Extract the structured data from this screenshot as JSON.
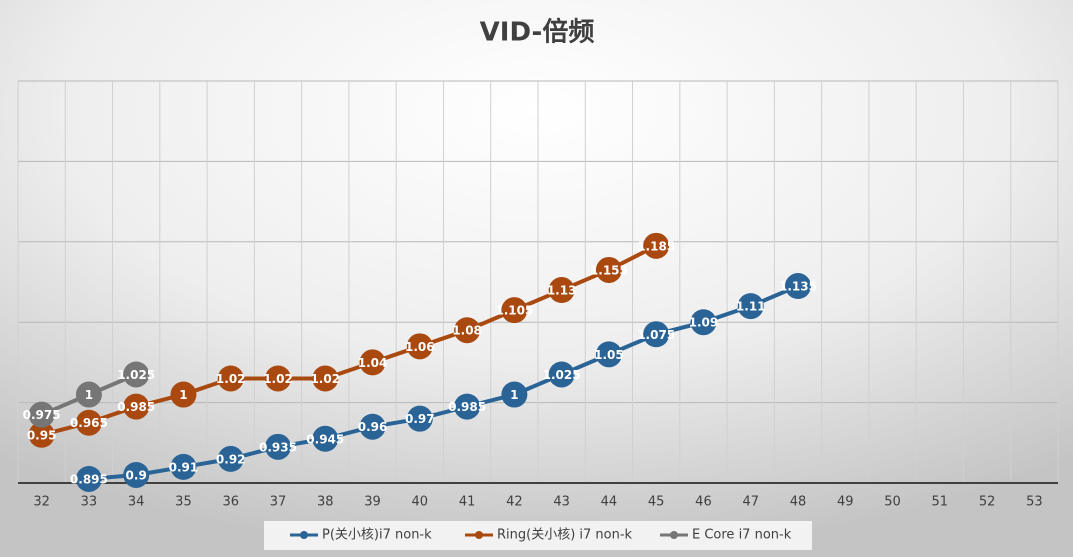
{
  "chart_data": {
    "type": "line",
    "title": "VID-倍频",
    "categories": [
      "32",
      "33",
      "34",
      "35",
      "36",
      "37",
      "38",
      "39",
      "40",
      "41",
      "42",
      "43",
      "44",
      "45",
      "46",
      "47",
      "48",
      "49",
      "50",
      "51",
      "52",
      "53"
    ],
    "series": [
      {
        "name": "P(关小核)i7 non-k",
        "color": "#2a6396",
        "values": [
          null,
          0.895,
          0.9,
          0.91,
          0.92,
          0.935,
          0.945,
          0.96,
          0.97,
          0.985,
          1,
          1.025,
          1.05,
          1.075,
          1.09,
          1.11,
          1.135,
          null,
          null,
          null,
          null,
          null
        ]
      },
      {
        "name": "Ring(关小核) i7 non-k",
        "color": "#a9490f",
        "values": [
          0.95,
          0.965,
          0.985,
          1,
          1.02,
          1.02,
          1.02,
          1.04,
          1.06,
          1.08,
          1.105,
          1.13,
          1.155,
          1.185,
          null,
          null,
          null,
          null,
          null,
          null,
          null,
          null
        ]
      },
      {
        "name": "E Core i7 non-k",
        "color": "#767676",
        "values": [
          0.975,
          1,
          1.025,
          null,
          null,
          null,
          null,
          null,
          null,
          null,
          null,
          null,
          null,
          null,
          null,
          null,
          null,
          null,
          null,
          null,
          null,
          null
        ]
      }
    ],
    "ylim": [
      0.89,
      1.39
    ],
    "yticks": [
      0.99,
      1.09,
      1.19,
      1.29,
      1.39
    ],
    "grid": true,
    "legend": "bottom"
  }
}
